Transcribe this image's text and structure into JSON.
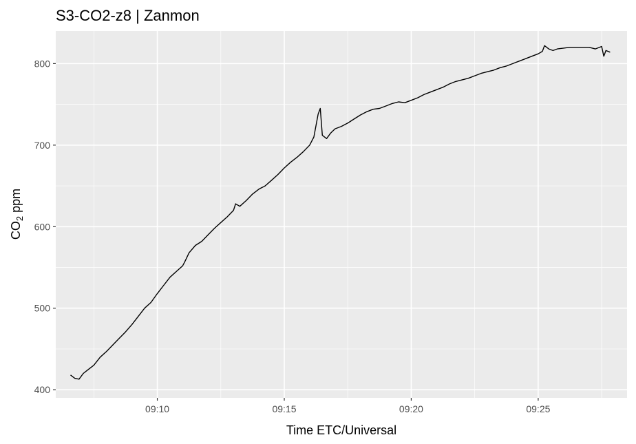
{
  "chart_data": {
    "type": "line",
    "title": "S3-CO2-z8 | Zanmon",
    "xlabel": "Time ETC/Universal",
    "ylabel": {
      "prefix": "CO",
      "subscript": "2",
      "suffix": " ppm"
    },
    "xlim": [
      "09:06:00",
      "09:28:30"
    ],
    "ylim": [
      390,
      840
    ],
    "x_ticks": [
      "09:10",
      "09:15",
      "09:20",
      "09:25"
    ],
    "y_ticks": [
      400,
      500,
      600,
      700,
      800
    ],
    "grid": true,
    "colors": {
      "panel": "#ebebeb",
      "grid": "#ffffff",
      "line": "#000000"
    },
    "series": [
      {
        "x": [
          "09:06:35",
          "09:06:45",
          "09:06:55",
          "09:07:05",
          "09:07:15",
          "09:07:30",
          "09:07:45",
          "09:08:00",
          "09:08:15",
          "09:08:30",
          "09:08:45",
          "09:09:00",
          "09:09:15",
          "09:09:30",
          "09:09:45",
          "09:10:00",
          "09:10:15",
          "09:10:30",
          "09:10:45",
          "09:11:00",
          "09:11:05",
          "09:11:15",
          "09:11:30",
          "09:11:45",
          "09:12:00",
          "09:12:15",
          "09:12:30",
          "09:12:45",
          "09:13:00",
          "09:13:05",
          "09:13:15",
          "09:13:30",
          "09:13:45",
          "09:14:00",
          "09:14:15",
          "09:14:30",
          "09:14:45",
          "09:15:00",
          "09:15:15",
          "09:15:30",
          "09:15:45",
          "09:16:00",
          "09:16:10",
          "09:16:20",
          "09:16:25",
          "09:16:30",
          "09:16:40",
          "09:16:50",
          "09:17:00",
          "09:17:15",
          "09:17:30",
          "09:17:45",
          "09:18:00",
          "09:18:15",
          "09:18:30",
          "09:18:45",
          "09:19:00",
          "09:19:15",
          "09:19:30",
          "09:19:45",
          "09:20:00",
          "09:20:15",
          "09:20:30",
          "09:20:45",
          "09:21:00",
          "09:21:15",
          "09:21:30",
          "09:21:45",
          "09:22:00",
          "09:22:15",
          "09:22:30",
          "09:22:45",
          "09:23:00",
          "09:23:15",
          "09:23:30",
          "09:23:45",
          "09:24:00",
          "09:24:15",
          "09:24:30",
          "09:24:45",
          "09:25:00",
          "09:25:10",
          "09:25:15",
          "09:25:25",
          "09:25:35",
          "09:25:45",
          "09:26:00",
          "09:26:15",
          "09:26:30",
          "09:26:45",
          "09:27:00",
          "09:27:15",
          "09:27:30",
          "09:27:35",
          "09:27:40",
          "09:27:50"
        ],
        "y": [
          418,
          414,
          413,
          420,
          424,
          430,
          440,
          447,
          455,
          463,
          471,
          480,
          490,
          500,
          507,
          518,
          528,
          538,
          545,
          552,
          557,
          568,
          577,
          582,
          590,
          598,
          605,
          612,
          620,
          628,
          625,
          632,
          640,
          646,
          650,
          657,
          664,
          672,
          679,
          685,
          692,
          700,
          710,
          738,
          745,
          712,
          708,
          715,
          720,
          723,
          727,
          732,
          737,
          741,
          744,
          745,
          748,
          751,
          753,
          752,
          755,
          758,
          762,
          765,
          768,
          771,
          775,
          778,
          780,
          782,
          785,
          788,
          790,
          792,
          795,
          797,
          800,
          803,
          806,
          809,
          812,
          815,
          822,
          818,
          816,
          818,
          819,
          820,
          820,
          820,
          820,
          818,
          821,
          809,
          816,
          814
        ]
      }
    ]
  }
}
